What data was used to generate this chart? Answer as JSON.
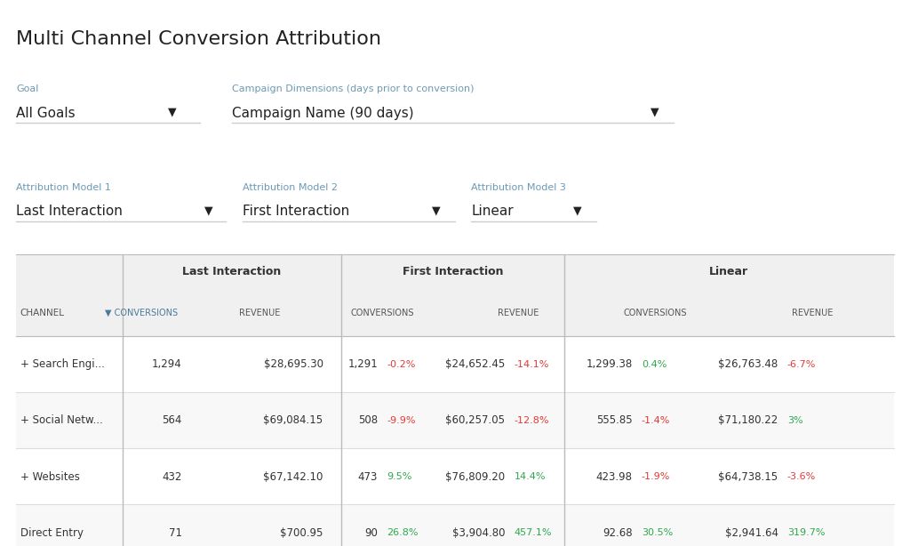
{
  "title": "Multi Channel Conversion Attribution",
  "goal_label": "Goal",
  "goal_value": "All Goals",
  "campaign_label": "Campaign Dimensions (days prior to conversion)",
  "campaign_value": "Campaign Name (90 days)",
  "attr_model1_label": "Attribution Model 1",
  "attr_model1_value": "Last Interaction",
  "attr_model2_label": "Attribution Model 2",
  "attr_model2_value": "First Interaction",
  "attr_model3_label": "Attribution Model 3",
  "attr_model3_value": "Linear",
  "table_header_col1": "CHANNEL",
  "table_header_last_conv": "CONVERSIONS",
  "table_header_last_rev": "REVENUE",
  "table_header_first_conv": "CONVERSIONS",
  "table_header_first_rev": "REVENUE",
  "table_header_linear_conv": "CONVERSIONS",
  "table_header_linear_rev": "REVENUE",
  "group_header_last": "Last Interaction",
  "group_header_first": "First Interaction",
  "group_header_linear": "Linear",
  "rows": [
    {
      "channel": "+ Search Engi...",
      "last_conv": "1,294",
      "last_rev": "$28,695.30",
      "first_conv": "1,291",
      "first_conv_pct": "-0.2%",
      "first_conv_pct_color": "red",
      "first_rev": "$24,652.45",
      "first_rev_pct": "-14.1%",
      "first_rev_pct_color": "red",
      "linear_conv": "1,299.38",
      "linear_conv_pct": "0.4%",
      "linear_conv_pct_color": "green",
      "linear_rev": "$26,763.48",
      "linear_rev_pct": "-6.7%",
      "linear_rev_pct_color": "red"
    },
    {
      "channel": "+ Social Netw...",
      "last_conv": "564",
      "last_rev": "$69,084.15",
      "first_conv": "508",
      "first_conv_pct": "-9.9%",
      "first_conv_pct_color": "red",
      "first_rev": "$60,257.05",
      "first_rev_pct": "-12.8%",
      "first_rev_pct_color": "red",
      "linear_conv": "555.85",
      "linear_conv_pct": "-1.4%",
      "linear_conv_pct_color": "red",
      "linear_rev": "$71,180.22",
      "linear_rev_pct": "3%",
      "linear_rev_pct_color": "green"
    },
    {
      "channel": "+ Websites",
      "last_conv": "432",
      "last_rev": "$67,142.10",
      "first_conv": "473",
      "first_conv_pct": "9.5%",
      "first_conv_pct_color": "green",
      "first_rev": "$76,809.20",
      "first_rev_pct": "14.4%",
      "first_rev_pct_color": "green",
      "linear_conv": "423.98",
      "linear_conv_pct": "-1.9%",
      "linear_conv_pct_color": "red",
      "linear_rev": "$64,738.15",
      "linear_rev_pct": "-3.6%",
      "linear_rev_pct_color": "red"
    },
    {
      "channel": "Direct Entry",
      "last_conv": "71",
      "last_rev": "$700.95",
      "first_conv": "90",
      "first_conv_pct": "26.8%",
      "first_conv_pct_color": "green",
      "first_rev": "$3,904.80",
      "first_rev_pct": "457.1%",
      "first_rev_pct_color": "green",
      "linear_conv": "92.68",
      "linear_conv_pct": "30.5%",
      "linear_conv_pct_color": "green",
      "linear_rev": "$2,941.64",
      "linear_rev_pct": "319.7%",
      "linear_rev_pct_color": "green"
    }
  ],
  "bg_color": "#ffffff",
  "table_header_bg": "#f0f0f0",
  "table_row_bg": "#ffffff",
  "table_border_color": "#cccccc",
  "group_border_color": "#888888",
  "title_color": "#222222",
  "label_color": "#6c9ab5",
  "value_color": "#222222",
  "channel_col_color": "#444444",
  "sort_arrow_color": "#4a7a9b",
  "green_color": "#2da84e",
  "red_color": "#e53935"
}
